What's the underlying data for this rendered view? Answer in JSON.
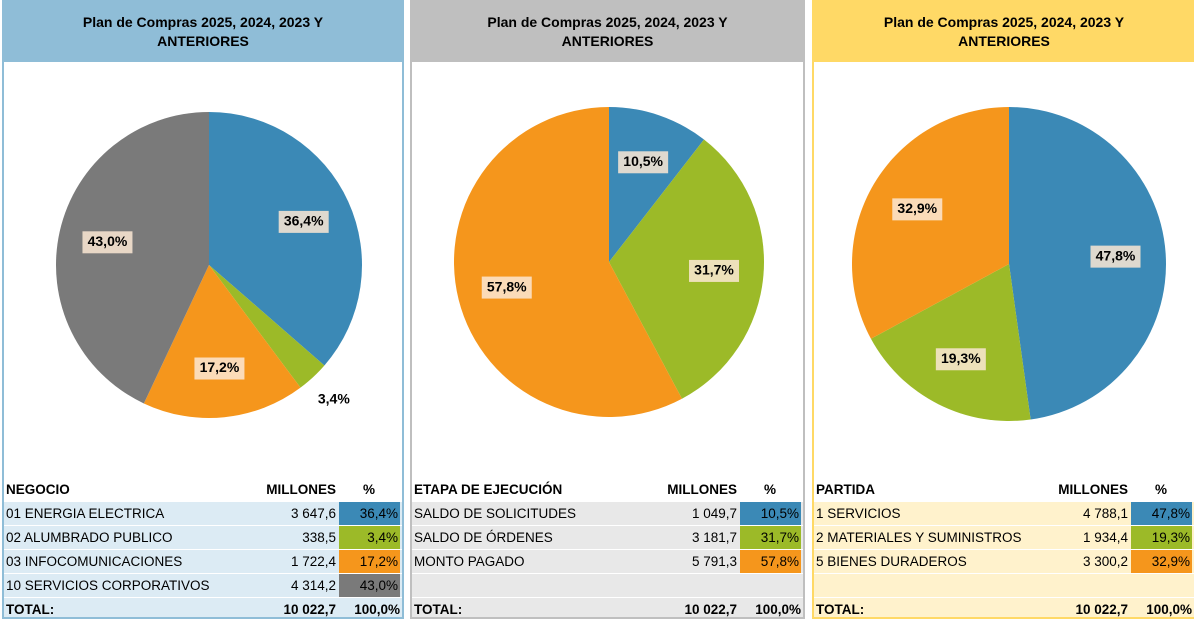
{
  "chart_data": [
    {
      "type": "pie",
      "title": "Plan de Compras 2025, 2024, 2023 Y ANTERIORES",
      "categories": [
        "01 ENERGIA ELECTRICA",
        "02 ALUMBRADO PUBLICO",
        "03 INFOCOMUNICACIONES",
        "10 SERVICIOS CORPORATIVOS"
      ],
      "values": [
        36.4,
        3.4,
        17.2,
        43.0
      ],
      "value_labels": [
        "36,4%",
        "3,4%",
        "17,2%",
        "43,0%"
      ],
      "colors": [
        "#3b89b6",
        "#9cba28",
        "#f5961c",
        "#7a7a7a"
      ],
      "theme": {
        "head": "#8fbdd7",
        "body": "#dcebf4",
        "border": "#8fbdd7"
      },
      "table": {
        "columns": [
          "NEGOCIO",
          "MILLONES",
          "%"
        ],
        "rows": [
          [
            "3 647,6",
            "36,4%"
          ],
          [
            "338,5",
            "3,4%"
          ],
          [
            "1 722,4",
            "17,2%"
          ],
          [
            "4 314,2",
            "43,0%"
          ]
        ],
        "total": [
          "TOTAL:",
          "10 022,7",
          "100,0%"
        ]
      }
    },
    {
      "type": "pie",
      "title": "Plan de Compras 2025, 2024, 2023 Y ANTERIORES",
      "categories": [
        "SALDO DE SOLICITUDES",
        "SALDO DE ÓRDENES",
        "MONTO PAGADO"
      ],
      "values": [
        10.5,
        31.7,
        57.8
      ],
      "value_labels": [
        "10,5%",
        "31,7%",
        "57,8%"
      ],
      "colors": [
        "#3b89b6",
        "#9cba28",
        "#f5961c"
      ],
      "theme": {
        "head": "#bfbfbf",
        "body": "#e8e8e8",
        "border": "#bfbfbf"
      },
      "table": {
        "columns": [
          "ETAPA DE EJECUCIÓN",
          "MILLONES",
          "%"
        ],
        "rows": [
          [
            "1 049,7",
            "10,5%"
          ],
          [
            "3 181,7",
            "31,7%"
          ],
          [
            "5 791,3",
            "57,8%"
          ]
        ],
        "total": [
          "TOTAL:",
          "10 022,7",
          "100,0%"
        ]
      }
    },
    {
      "type": "pie",
      "title": "Plan de Compras 2025, 2024, 2023 Y ANTERIORES",
      "categories": [
        "1 SERVICIOS",
        "2 MATERIALES Y SUMINISTROS",
        "5 BIENES DURADEROS"
      ],
      "values": [
        47.8,
        19.3,
        32.9
      ],
      "value_labels": [
        "47,8%",
        "19,3%",
        "32,9%"
      ],
      "colors": [
        "#3b89b6",
        "#9cba28",
        "#f5961c"
      ],
      "theme": {
        "head": "#ffd966",
        "body": "#fff2cc",
        "border": "#ffd966"
      },
      "table": {
        "columns": [
          "PARTIDA",
          "MILLONES",
          "%"
        ],
        "rows": [
          [
            "4 788,1",
            "47,8%"
          ],
          [
            "1 934,4",
            "19,3%"
          ],
          [
            "3 300,2",
            "32,9%"
          ]
        ],
        "total": [
          "TOTAL:",
          "10 022,7",
          "100,0%"
        ]
      }
    }
  ]
}
